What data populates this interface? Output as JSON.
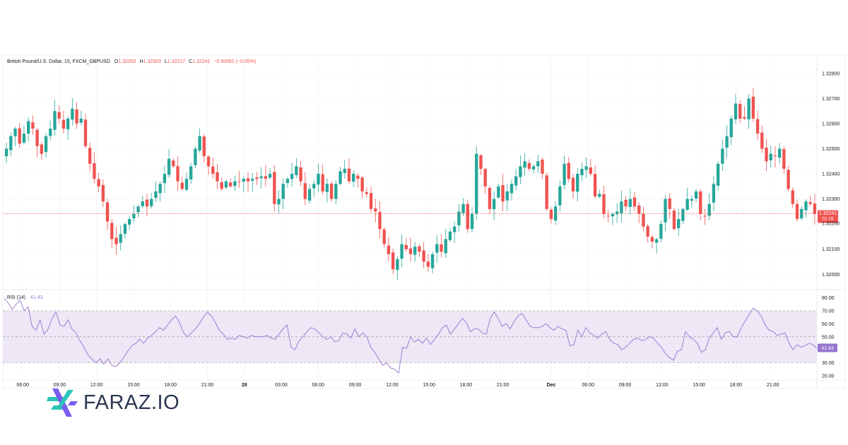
{
  "chart_data": {
    "type": "candlestick",
    "title": "British Pound/U.S. Dollar, 15, FXCM_GBPUSD",
    "ohlc_header": {
      "o_label": "O",
      "o_value": "1.32302",
      "h_label": "H",
      "h_value": "1.32303",
      "l_label": "L",
      "l_value": "1.32217",
      "c_label": "C",
      "c_value": "1.32241",
      "change": "−0.00061 (−0.05%)"
    },
    "price_axis": {
      "ticks": [
        "1.32800",
        "1.32700",
        "1.32600",
        "1.32500",
        "1.32400",
        "1.32300",
        "1.32100",
        "1.32000"
      ],
      "tick_values": [
        1.328,
        1.327,
        1.326,
        1.325,
        1.324,
        1.323,
        1.321,
        1.32
      ],
      "range": [
        1.31953,
        1.32825
      ],
      "last_price": 1.32241,
      "last_price_label": "1.32241",
      "countdown": "01:15",
      "partial_tick_label": "1.32200"
    },
    "rsi": {
      "title": "RSI (14)",
      "current_value": "41.43",
      "range": [
        20,
        83
      ],
      "ticks": [
        "80.00",
        "70.00",
        "60.00",
        "50.00",
        "30.00",
        "20.00"
      ],
      "tick_values": [
        80,
        70,
        60,
        50,
        30,
        20
      ],
      "upper_band": 70,
      "middle_band": 50,
      "lower_band": 30,
      "values": [
        79.5,
        76,
        71,
        75,
        78,
        70,
        73,
        58,
        55,
        63,
        52,
        56,
        64,
        69,
        59,
        58,
        63,
        56,
        53,
        47,
        42,
        36,
        33,
        30,
        33,
        29,
        33,
        28,
        27,
        30,
        34,
        39,
        43,
        45,
        48,
        45,
        49,
        51,
        54,
        57,
        55,
        59,
        63,
        66,
        61,
        53,
        50,
        53,
        56,
        60,
        65,
        69,
        66,
        61,
        55,
        52,
        48,
        49,
        48,
        51,
        50,
        49,
        51,
        50,
        50,
        50,
        51,
        49,
        48,
        52,
        56,
        59,
        42,
        40,
        47,
        50,
        54,
        57,
        56,
        53,
        50,
        48,
        50,
        46,
        47,
        53,
        52,
        49,
        56,
        50,
        53,
        50,
        42,
        38,
        33,
        28,
        30,
        26,
        25,
        22,
        42,
        41,
        50,
        46,
        48,
        45,
        49,
        44,
        48,
        52,
        57,
        59,
        52,
        56,
        60,
        64,
        61,
        54,
        56,
        56,
        53,
        52,
        64,
        69,
        64,
        58,
        60,
        56,
        62,
        66,
        68,
        63,
        58,
        57,
        57,
        58,
        60,
        57,
        55,
        58,
        56,
        55,
        43,
        44,
        55,
        50,
        57,
        53,
        51,
        49,
        52,
        54,
        48,
        45,
        44,
        40,
        42,
        45,
        48,
        49,
        47,
        48,
        50,
        49,
        45,
        42,
        37,
        34,
        32,
        39,
        40,
        54,
        50,
        48,
        45,
        38,
        40,
        49,
        53,
        57,
        48,
        53,
        54,
        50,
        50,
        57,
        62,
        67,
        72,
        70,
        66,
        59,
        55,
        54,
        51,
        52,
        53,
        45,
        40,
        44,
        42,
        43,
        45,
        44,
        41
      ]
    },
    "time_axis": {
      "labels": [
        "06:00",
        "09:00",
        "12:00",
        "15:00",
        "18:00",
        "21:00",
        "28",
        "03:00",
        "06:00",
        "09:00",
        "12:00",
        "15:00",
        "18:00",
        "21:00",
        "Dec",
        "06:00",
        "09:00",
        "12:00",
        "15:00",
        "18:00",
        "21:00"
      ],
      "positions": [
        6.5,
        19.5,
        32.5,
        45.5,
        58.5,
        71.5,
        84.5,
        97.5,
        110.5,
        123.5,
        136.5,
        149.5,
        162.5,
        175.5,
        192.5,
        205.5,
        218.5,
        231.5,
        244.5,
        257.5,
        270.5
      ],
      "bold_labels": [
        "28",
        "Dec"
      ]
    },
    "closes": [
      1.325,
      1.3255,
      1.3258,
      1.3252,
      1.3256,
      1.3261,
      1.3258,
      1.3251,
      1.3248,
      1.3255,
      1.3258,
      1.3265,
      1.3262,
      1.3258,
      1.3262,
      1.3266,
      1.326,
      1.3262,
      1.3251,
      1.3244,
      1.3238,
      1.3235,
      1.3229,
      1.3221,
      1.3214,
      1.3212,
      1.3216,
      1.322,
      1.3222,
      1.3224,
      1.3227,
      1.3229,
      1.3227,
      1.323,
      1.3233,
      1.3236,
      1.324,
      1.3246,
      1.3243,
      1.3237,
      1.3234,
      1.3238,
      1.3243,
      1.325,
      1.3255,
      1.3247,
      1.3243,
      1.324,
      1.3237,
      1.3234,
      1.3237,
      1.3235,
      1.3237,
      1.3237,
      1.3238,
      1.3237,
      1.3238,
      1.3238,
      1.3239,
      1.3238,
      1.324,
      1.3228,
      1.323,
      1.3236,
      1.3238,
      1.324,
      1.3243,
      1.3237,
      1.323,
      1.3234,
      1.3236,
      1.324,
      1.3233,
      1.3236,
      1.323,
      1.3236,
      1.3241,
      1.3242,
      1.3237,
      1.324,
      1.3238,
      1.3233,
      1.3232,
      1.3226,
      1.3225,
      1.3218,
      1.3212,
      1.3208,
      1.3202,
      1.3206,
      1.3212,
      1.321,
      1.3208,
      1.3211,
      1.3209,
      1.3205,
      1.3203,
      1.3208,
      1.3212,
      1.3209,
      1.3214,
      1.3217,
      1.3219,
      1.3225,
      1.3228,
      1.3218,
      1.3224,
      1.3248,
      1.3242,
      1.3235,
      1.3226,
      1.323,
      1.3235,
      1.3229,
      1.3233,
      1.3236,
      1.3239,
      1.3243,
      1.3245,
      1.3242,
      1.3243,
      1.3245,
      1.324,
      1.3226,
      1.3222,
      1.3227,
      1.3235,
      1.3244,
      1.3238,
      1.3233,
      1.324,
      1.3242,
      1.3243,
      1.324,
      1.3231,
      1.3232,
      1.3224,
      1.3223,
      1.3224,
      1.3225,
      1.3229,
      1.3227,
      1.323,
      1.3227,
      1.3224,
      1.3219,
      1.3215,
      1.3213,
      1.3214,
      1.322,
      1.323,
      1.3226,
      1.3218,
      1.3222,
      1.3226,
      1.323,
      1.323,
      1.3233,
      1.3224,
      1.3223,
      1.3228,
      1.3236,
      1.3244,
      1.325,
      1.3255,
      1.3262,
      1.3268,
      1.3262,
      1.3262,
      1.327,
      1.3262,
      1.3256,
      1.325,
      1.3245,
      1.3248,
      1.3247,
      1.325,
      1.3242,
      1.3234,
      1.3228,
      1.3222,
      1.3226,
      1.3229,
      1.3228,
      1.32241
    ]
  },
  "brand": {
    "name": "FARAZ.IO",
    "colors": {
      "teal": "#2bc4b8",
      "purple": "#7b5cf0",
      "text": "#2b3650"
    }
  },
  "colors": {
    "up": "#26a69a",
    "down": "#ef5350",
    "rsi_line": "#9575cd",
    "rsi_band": "#ede7f6",
    "grid": "#f0f3fa",
    "axis_text": "#131722",
    "muted_text": "#5d606b",
    "price_label_bg": "#ef5350"
  }
}
